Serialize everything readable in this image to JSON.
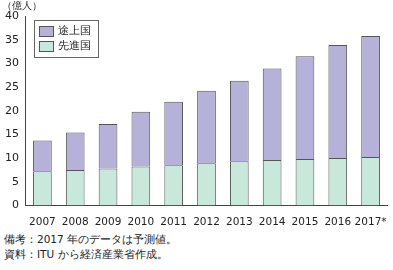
{
  "chart_data": {
    "type": "bar",
    "stacked": true,
    "ylabel": "（億人）",
    "categories": [
      "2007",
      "2008",
      "2009",
      "2010",
      "2011",
      "2012",
      "2013",
      "2014",
      "2015",
      "2016",
      "2017*"
    ],
    "series": [
      {
        "name": "先進国",
        "color": "#c9e8dc",
        "values": [
          7.2,
          7.5,
          7.8,
          8.2,
          8.5,
          8.9,
          9.3,
          9.6,
          9.8,
          10.0,
          10.2
        ]
      },
      {
        "name": "途上国",
        "color": "#b6b1d9",
        "values": [
          6.5,
          7.9,
          9.4,
          11.6,
          13.4,
          15.3,
          17.0,
          19.3,
          21.7,
          23.9,
          25.6
        ]
      }
    ],
    "ylim": [
      0,
      40
    ],
    "yticks": [
      0,
      5,
      10,
      15,
      20,
      25,
      30,
      35,
      40
    ],
    "grid": false,
    "legend": "upper left",
    "notes": [
      "備考：2017 年のデータは予測値。",
      "資料：ITU から経済産業省作成。"
    ]
  }
}
